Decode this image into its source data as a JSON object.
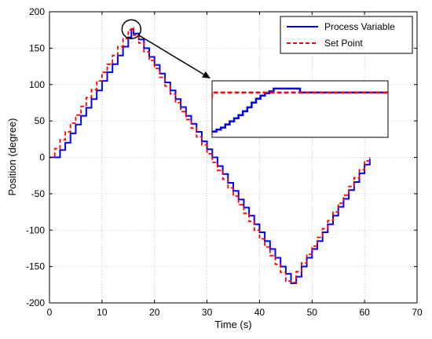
{
  "chart_data": {
    "type": "line",
    "xlabel": "Time (s)",
    "ylabel": "Position (degree)",
    "xlim": [
      0,
      70
    ],
    "ylim": [
      -200,
      200
    ],
    "xticks": [
      0,
      10,
      20,
      30,
      40,
      50,
      60,
      70
    ],
    "yticks": [
      -200,
      -150,
      -100,
      -50,
      0,
      50,
      100,
      150,
      200
    ],
    "grid": true,
    "legend_position": "top-right",
    "series": [
      {
        "name": "Process Variable",
        "color": "#0000ff",
        "style": "solid",
        "x": [
          0,
          1.0,
          2.0,
          3.0,
          4.0,
          5.0,
          6.0,
          7.0,
          8.0,
          9.0,
          10.0,
          11.0,
          12.0,
          13.0,
          14.0,
          15.0,
          15.6,
          16.0,
          17.0,
          18.0,
          19.0,
          20.0,
          21.0,
          22.0,
          23.0,
          24.0,
          25.0,
          26.0,
          27.0,
          28.0,
          29.0,
          30.0,
          31.0,
          32.0,
          33.0,
          34.0,
          35.0,
          36.0,
          37.0,
          38.0,
          39.0,
          40.0,
          41.0,
          42.0,
          43.0,
          44.0,
          45.0,
          46.0,
          47.0,
          48.0,
          49.0,
          50.0,
          51.0,
          52.0,
          53.0,
          54.0,
          55.0,
          56.0,
          57.0,
          58.0,
          59.0,
          60.0,
          61.0
        ],
        "y": [
          0,
          0,
          10,
          20,
          33,
          45,
          57,
          68,
          80,
          92,
          105,
          117,
          128,
          140,
          152,
          165,
          176,
          170,
          162,
          150,
          138,
          127,
          115,
          103,
          92,
          80,
          69,
          57,
          46,
          35,
          22,
          11,
          0,
          -12,
          -23,
          -35,
          -46,
          -58,
          -69,
          -80,
          -92,
          -103,
          -115,
          -126,
          -138,
          -150,
          -160,
          -173,
          -164,
          -150,
          -138,
          -126,
          -115,
          -103,
          -92,
          -80,
          -68,
          -57,
          -45,
          -34,
          -22,
          -10,
          -2
        ]
      },
      {
        "name": "Set Point",
        "color": "#ff0000",
        "style": "dashed",
        "x": [
          0,
          1.0,
          2.0,
          3.0,
          4.0,
          5.0,
          6.0,
          7.0,
          8.0,
          9.0,
          10.0,
          11.0,
          12.0,
          13.0,
          14.0,
          15.0,
          15.6,
          16.0,
          17.0,
          18.0,
          19.0,
          20.0,
          21.0,
          22.0,
          23.0,
          24.0,
          25.0,
          26.0,
          27.0,
          28.0,
          29.0,
          30.0,
          31.0,
          32.0,
          33.0,
          34.0,
          35.0,
          36.0,
          37.0,
          38.0,
          39.0,
          40.0,
          41.0,
          42.0,
          43.0,
          44.0,
          45.0,
          46.0,
          47.0,
          48.0,
          49.0,
          50.0,
          51.0,
          52.0,
          53.0,
          54.0,
          55.0,
          56.0,
          57.0,
          58.0,
          59.0,
          60.0,
          61.0
        ],
        "y": [
          0,
          12,
          24,
          35,
          47,
          58,
          70,
          82,
          93,
          105,
          117,
          128,
          140,
          152,
          163,
          175,
          178,
          168,
          157,
          145,
          133,
          122,
          110,
          98,
          87,
          75,
          63,
          52,
          40,
          28,
          17,
          5,
          -7,
          -18,
          -30,
          -42,
          -53,
          -65,
          -77,
          -88,
          -100,
          -112,
          -123,
          -135,
          -147,
          -158,
          -170,
          -172,
          -157,
          -145,
          -133,
          -122,
          -110,
          -98,
          -87,
          -75,
          -63,
          -52,
          -40,
          -28,
          -17,
          -5,
          0
        ]
      }
    ],
    "inset": {
      "description_role": "zoom detail of peak near t=15.6 s",
      "highlight_center": [
        15.6,
        176
      ],
      "process_variable": {
        "x": [
          0,
          0.5,
          0.5,
          1.0,
          1.5,
          2.0,
          2.5,
          3.0,
          3.5,
          4.0,
          4.5,
          5.0,
          5.5,
          6.0,
          6.5,
          7.0,
          7.0,
          10.0,
          10.0,
          13.0,
          15.0,
          20.0
        ],
        "y": [
          0.0,
          0.0,
          0.05,
          0.1,
          0.18,
          0.26,
          0.34,
          0.42,
          0.52,
          0.62,
          0.74,
          0.84,
          0.92,
          0.98,
          1.03,
          1.03,
          1.1,
          1.1,
          1.0,
          1.0,
          1.0,
          1.0
        ]
      },
      "set_point": {
        "x": [
          0,
          0,
          20
        ],
        "y": [
          0.85,
          1.0,
          1.0
        ]
      }
    }
  }
}
